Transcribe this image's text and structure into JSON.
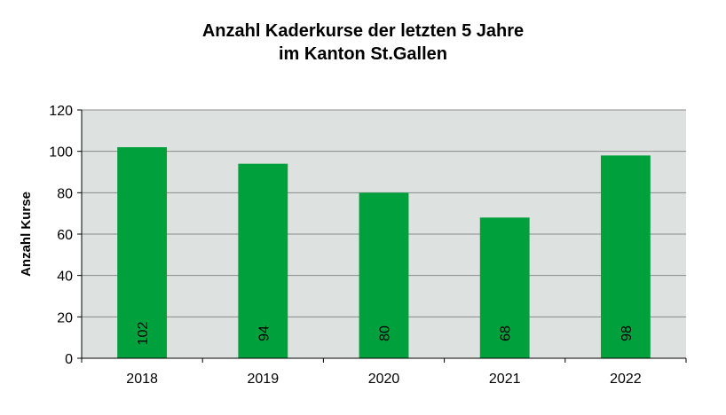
{
  "chart_data": {
    "type": "bar",
    "title": [
      "Anzahl Kaderkurse der letzten 5 Jahre",
      "im Kanton St.Gallen"
    ],
    "xlabel": "",
    "ylabel": "Anzahl Kurse",
    "categories": [
      "2018",
      "2019",
      "2020",
      "2021",
      "2022"
    ],
    "values": [
      102,
      94,
      80,
      68,
      98
    ],
    "data_labels": [
      "102",
      "94",
      "80",
      "68",
      "98"
    ],
    "ylim": [
      0,
      120
    ],
    "yticks": [
      0,
      20,
      40,
      60,
      80,
      100,
      120
    ],
    "ytick_labels": [
      "0",
      "20",
      "40",
      "60",
      "80",
      "100",
      "120"
    ],
    "grid": true,
    "legend": "none",
    "colors": {
      "bar": "#00A03C",
      "plot_background": "#DDE2E0",
      "gridline": "#8A8A8A",
      "axis": "#000000"
    }
  }
}
